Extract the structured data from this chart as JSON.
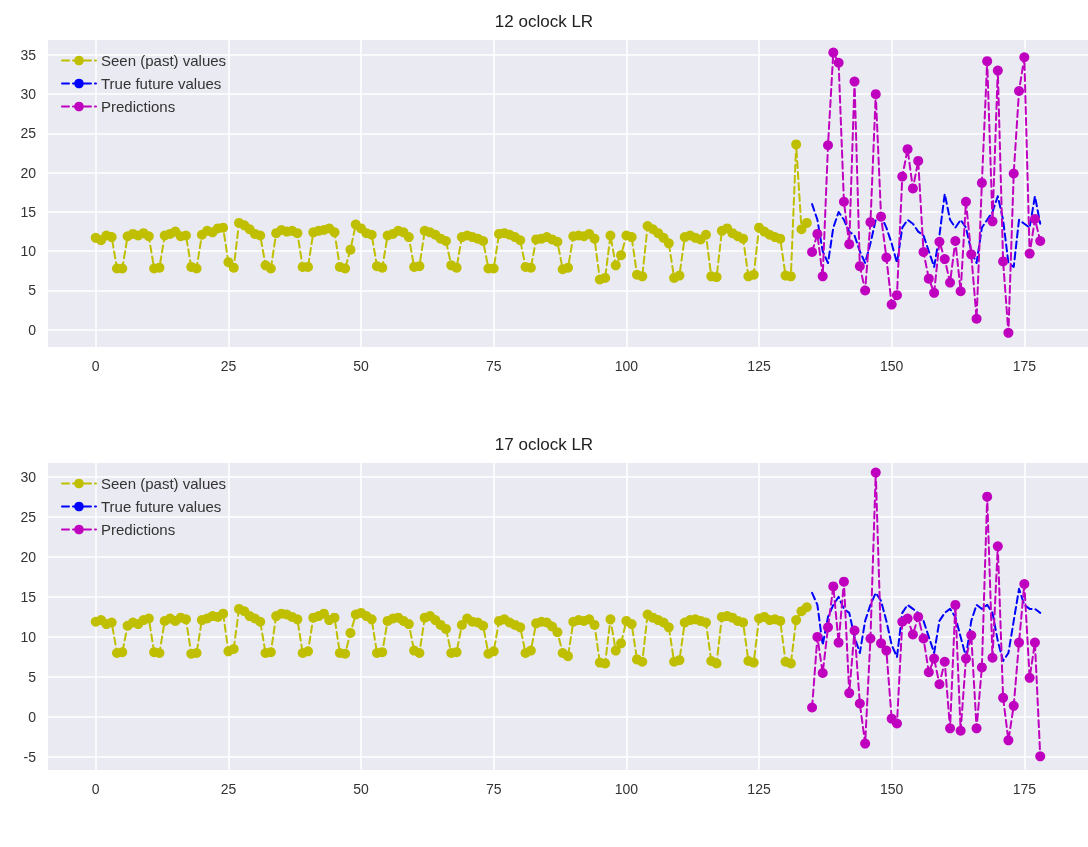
{
  "chart_data": [
    {
      "type": "line",
      "title": "12 oclock LR",
      "xlim": [
        -9,
        187
      ],
      "ylim": [
        -2.2,
        36.9
      ],
      "xticks": [
        0,
        25,
        50,
        75,
        100,
        125,
        150,
        175
      ],
      "yticks": [
        0,
        5,
        10,
        15,
        20,
        25,
        30,
        35
      ],
      "grid": true,
      "legend": "top left",
      "series": [
        {
          "name": "Seen (past) values",
          "color": "#bfbf00",
          "marker": "circle",
          "line_style": "dashed",
          "x": [
            0,
            1,
            2,
            3,
            4,
            5,
            6,
            7,
            8,
            9,
            10,
            11,
            12,
            13,
            14,
            15,
            16,
            17,
            18,
            19,
            20,
            21,
            22,
            23,
            24,
            25,
            26,
            27,
            28,
            29,
            30,
            31,
            32,
            33,
            34,
            35,
            36,
            37,
            38,
            39,
            40,
            41,
            42,
            43,
            44,
            45,
            46,
            47,
            48,
            49,
            50,
            51,
            52,
            53,
            54,
            55,
            56,
            57,
            58,
            59,
            60,
            61,
            62,
            63,
            64,
            65,
            66,
            67,
            68,
            69,
            70,
            71,
            72,
            73,
            74,
            75,
            76,
            77,
            78,
            79,
            80,
            81,
            82,
            83,
            84,
            85,
            86,
            87,
            88,
            89,
            90,
            91,
            92,
            93,
            94,
            95,
            96,
            97,
            98,
            99,
            100,
            101,
            102,
            103,
            104,
            105,
            106,
            107,
            108,
            109,
            110,
            111,
            112,
            113,
            114,
            115,
            116,
            117,
            118,
            119,
            120,
            121,
            122,
            123,
            124,
            125,
            126,
            127,
            128,
            129,
            130,
            131,
            132,
            133,
            134
          ],
          "values": [
            11.7,
            11.4,
            12.0,
            11.8,
            7.8,
            7.8,
            11.9,
            12.2,
            12.0,
            12.3,
            11.9,
            7.8,
            7.9,
            12.0,
            12.2,
            12.5,
            11.9,
            12.0,
            8.0,
            7.8,
            12.1,
            12.6,
            12.4,
            12.9,
            13.0,
            8.6,
            7.9,
            13.6,
            13.3,
            12.8,
            12.2,
            12.0,
            8.2,
            7.8,
            12.3,
            12.7,
            12.5,
            12.6,
            12.3,
            8.0,
            8.0,
            12.4,
            12.6,
            12.7,
            12.9,
            12.4,
            8.0,
            7.8,
            10.2,
            13.4,
            12.9,
            12.3,
            12.1,
            8.1,
            7.9,
            12.0,
            12.2,
            12.6,
            12.4,
            11.8,
            8.0,
            8.1,
            12.6,
            12.4,
            12.1,
            11.6,
            11.3,
            8.2,
            7.9,
            11.8,
            12.0,
            11.8,
            11.6,
            11.3,
            7.8,
            7.8,
            12.2,
            12.3,
            12.1,
            11.8,
            11.4,
            8.0,
            7.9,
            11.5,
            11.6,
            11.8,
            11.5,
            11.2,
            7.7,
            7.9,
            11.9,
            12.0,
            11.9,
            12.2,
            11.6,
            6.4,
            6.6,
            12.0,
            8.2,
            9.5,
            12.0,
            11.8,
            7.0,
            6.8,
            13.2,
            12.8,
            12.3,
            11.7,
            11.0,
            6.6,
            6.9,
            11.8,
            12.0,
            11.7,
            11.5,
            12.1,
            6.8,
            6.7,
            12.6,
            12.9,
            12.3,
            11.9,
            11.6,
            6.8,
            7.0,
            13.0,
            12.5,
            12.1,
            11.8,
            11.6,
            6.9,
            6.8,
            23.6,
            12.8,
            13.6
          ]
        },
        {
          "name": "True future values",
          "color": "#0000ff",
          "marker": "none",
          "line_style": "dashed",
          "x": [
            135,
            136,
            137,
            138,
            139,
            140,
            141,
            142,
            143,
            144,
            145,
            146,
            147,
            148,
            149,
            150,
            151,
            152,
            153,
            154,
            155,
            156,
            157,
            158,
            159,
            160,
            161,
            162,
            163,
            164,
            165,
            166,
            167,
            168,
            169,
            170,
            171,
            172,
            173,
            174,
            175,
            176,
            177,
            178
          ],
          "values": [
            16,
            14,
            10,
            8.5,
            13,
            15,
            14,
            12.5,
            12,
            10,
            8.5,
            11,
            14,
            14.5,
            13,
            11,
            8.5,
            13,
            14,
            13.5,
            12.5,
            12,
            10,
            8,
            12,
            17.3,
            14,
            13,
            14,
            13,
            10,
            8.5,
            13,
            14,
            15,
            17,
            14,
            8.5,
            8,
            14,
            13.5,
            13,
            17,
            13.5
          ]
        },
        {
          "name": "Predictions",
          "color": "#bf00bf",
          "marker": "circle",
          "line_style": "dashed",
          "x": [
            135,
            136,
            137,
            138,
            139,
            140,
            141,
            142,
            143,
            144,
            145,
            146,
            147,
            148,
            149,
            150,
            151,
            152,
            153,
            154,
            155,
            156,
            157,
            158,
            159,
            160,
            161,
            162,
            163,
            164,
            165,
            166,
            167,
            168,
            169,
            170,
            171,
            172,
            173,
            174,
            175,
            176,
            177,
            178
          ],
          "values": [
            9.9,
            12.2,
            6.8,
            23.5,
            35.3,
            34,
            16.3,
            10.9,
            31.6,
            8.1,
            5,
            13.7,
            30,
            14.4,
            9.2,
            3.2,
            4.4,
            19.5,
            23,
            18,
            21.5,
            9.9,
            6.5,
            4.7,
            11.2,
            9,
            6,
            11.3,
            4.9,
            16.3,
            9.6,
            1.4,
            18.7,
            34.2,
            13.8,
            33,
            8.7,
            -0.4,
            19.9,
            30.4,
            34.7,
            9.7,
            14.1,
            11.3
          ]
        }
      ]
    },
    {
      "type": "line",
      "title": "17 oclock LR",
      "xlim": [
        -9,
        187
      ],
      "ylim": [
        -6.6,
        31.7
      ],
      "xticks": [
        0,
        25,
        50,
        75,
        100,
        125,
        150,
        175
      ],
      "yticks": [
        -5,
        0,
        5,
        10,
        15,
        20,
        25,
        30
      ],
      "grid": true,
      "legend": "top left",
      "series": [
        {
          "name": "Seen (past) values",
          "color": "#bfbf00",
          "marker": "circle",
          "line_style": "dashed",
          "x": [
            0,
            1,
            2,
            3,
            4,
            5,
            6,
            7,
            8,
            9,
            10,
            11,
            12,
            13,
            14,
            15,
            16,
            17,
            18,
            19,
            20,
            21,
            22,
            23,
            24,
            25,
            26,
            27,
            28,
            29,
            30,
            31,
            32,
            33,
            34,
            35,
            36,
            37,
            38,
            39,
            40,
            41,
            42,
            43,
            44,
            45,
            46,
            47,
            48,
            49,
            50,
            51,
            52,
            53,
            54,
            55,
            56,
            57,
            58,
            59,
            60,
            61,
            62,
            63,
            64,
            65,
            66,
            67,
            68,
            69,
            70,
            71,
            72,
            73,
            74,
            75,
            76,
            77,
            78,
            79,
            80,
            81,
            82,
            83,
            84,
            85,
            86,
            87,
            88,
            89,
            90,
            91,
            92,
            93,
            94,
            95,
            96,
            97,
            98,
            99,
            100,
            101,
            102,
            103,
            104,
            105,
            106,
            107,
            108,
            109,
            110,
            111,
            112,
            113,
            114,
            115,
            116,
            117,
            118,
            119,
            120,
            121,
            122,
            123,
            124,
            125,
            126,
            127,
            128,
            129,
            130,
            131,
            132,
            133,
            134
          ],
          "values": [
            11.9,
            12.1,
            11.6,
            11.8,
            8.0,
            8.1,
            11.4,
            11.8,
            11.6,
            12.1,
            12.3,
            8.1,
            8.0,
            12.0,
            12.3,
            12.0,
            12.4,
            12.2,
            7.9,
            8.0,
            12.1,
            12.3,
            12.6,
            12.5,
            12.9,
            8.2,
            8.5,
            13.5,
            13.2,
            12.6,
            12.3,
            11.9,
            8.0,
            8.1,
            12.6,
            12.9,
            12.8,
            12.5,
            12.2,
            8.0,
            8.2,
            12.4,
            12.6,
            12.9,
            12.1,
            12.4,
            8.0,
            7.9,
            10.5,
            12.8,
            13.0,
            12.6,
            12.2,
            8.0,
            8.1,
            12.0,
            12.3,
            12.4,
            12.0,
            11.6,
            8.3,
            8.0,
            12.4,
            12.6,
            12.1,
            11.5,
            11.0,
            8.0,
            8.1,
            11.5,
            12.3,
            11.9,
            11.8,
            11.4,
            7.9,
            8.2,
            12.0,
            12.2,
            11.8,
            11.5,
            11.2,
            8.0,
            8.3,
            11.7,
            11.9,
            11.8,
            11.3,
            10.6,
            8.0,
            7.6,
            11.9,
            12.1,
            12.0,
            12.2,
            11.5,
            6.8,
            6.7,
            12.2,
            8.3,
            9.2,
            12.0,
            11.6,
            7.2,
            6.9,
            12.8,
            12.4,
            12.1,
            11.8,
            11.2,
            6.9,
            7.1,
            11.8,
            12.1,
            12.2,
            12.0,
            11.8,
            7.0,
            6.7,
            12.5,
            12.6,
            12.4,
            12.0,
            11.8,
            7.0,
            6.8,
            12.3,
            12.5,
            12.1,
            12.2,
            12.0,
            6.9,
            6.7,
            12.1,
            13.2,
            13.7
          ]
        },
        {
          "name": "True future values",
          "color": "#0000ff",
          "marker": "none",
          "line_style": "dashed",
          "x": [
            135,
            136,
            137,
            138,
            139,
            140,
            141,
            142,
            143,
            144,
            145,
            146,
            147,
            148,
            149,
            150,
            151,
            152,
            153,
            154,
            155,
            156,
            157,
            158,
            159,
            160,
            161,
            162,
            163,
            164,
            165,
            166,
            167,
            168,
            169,
            170,
            171,
            172,
            173,
            174,
            175,
            176,
            177,
            178
          ],
          "values": [
            15.5,
            14,
            9,
            12.5,
            14,
            15,
            13.5,
            13,
            10,
            8,
            12,
            14,
            15.5,
            14.5,
            12,
            9,
            7.5,
            13,
            14,
            13.5,
            13,
            12,
            10,
            8,
            12,
            13,
            13.5,
            12.5,
            10,
            7.5,
            12,
            14,
            13.5,
            14,
            13,
            9.5,
            7,
            8,
            12,
            16,
            14,
            13.5,
            13.5,
            13
          ]
        },
        {
          "name": "Predictions",
          "color": "#bf00bf",
          "marker": "circle",
          "line_style": "dashed",
          "x": [
            135,
            136,
            137,
            138,
            139,
            140,
            141,
            142,
            143,
            144,
            145,
            146,
            147,
            148,
            149,
            150,
            151,
            152,
            153,
            154,
            155,
            156,
            157,
            158,
            159,
            160,
            161,
            162,
            163,
            164,
            165,
            166,
            167,
            168,
            169,
            170,
            171,
            172,
            173,
            174,
            175,
            176,
            177,
            178
          ],
          "values": [
            1.2,
            10,
            5.5,
            11.2,
            16.3,
            9.3,
            16.9,
            3,
            10.8,
            1.7,
            -3.3,
            9.8,
            30.5,
            9.2,
            8.3,
            -0.2,
            -0.8,
            11.9,
            12.3,
            10.3,
            12.5,
            9.8,
            5.6,
            7.3,
            4.1,
            6.9,
            -1.4,
            14,
            -1.7,
            7.3,
            10.2,
            -1.4,
            6.2,
            27.5,
            7.4,
            21.3,
            2.4,
            -2.9,
            1.4,
            9.3,
            16.6,
            4.9,
            9.3,
            -4.9
          ]
        }
      ]
    }
  ]
}
